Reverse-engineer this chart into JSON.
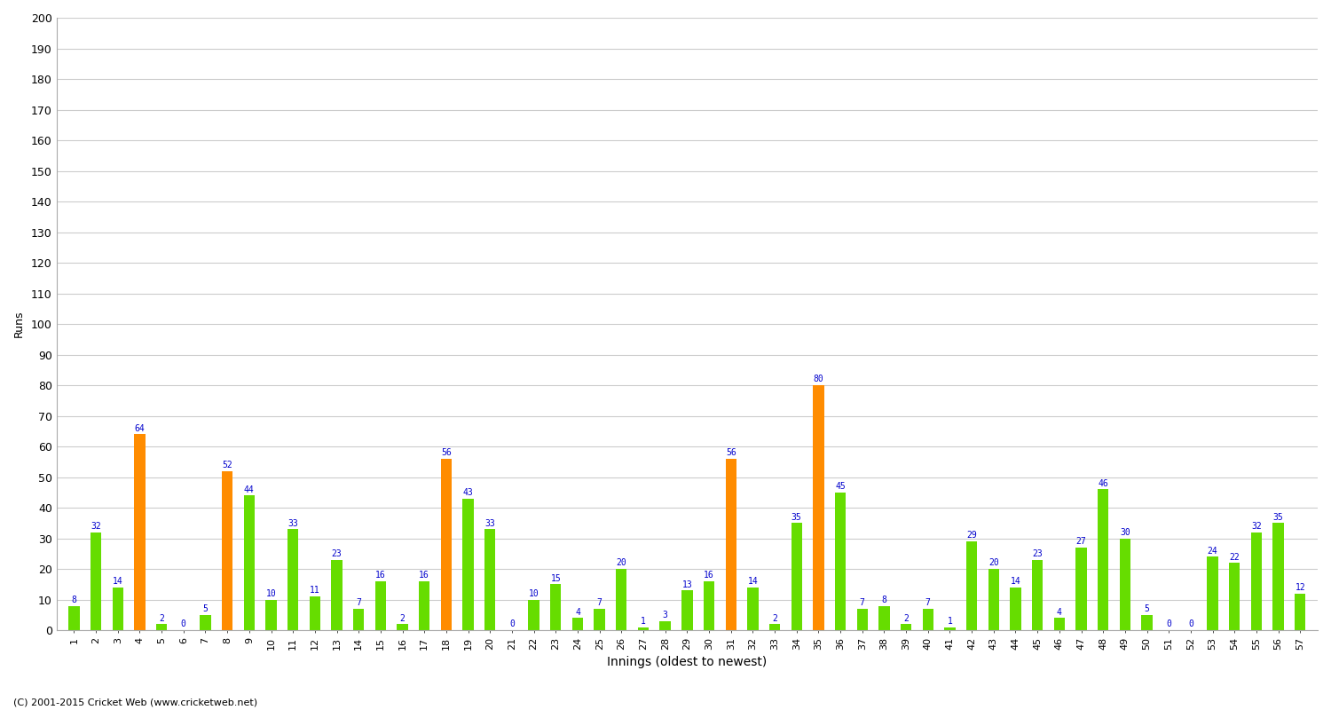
{
  "values": [
    8,
    32,
    14,
    64,
    2,
    0,
    5,
    52,
    44,
    10,
    33,
    11,
    23,
    7,
    16,
    2,
    16,
    56,
    43,
    33,
    0,
    10,
    15,
    4,
    7,
    20,
    1,
    3,
    13,
    16,
    56,
    14,
    2,
    35,
    80,
    45,
    7,
    8,
    2,
    7,
    1,
    29,
    20,
    14,
    23,
    4,
    27,
    46,
    30,
    5,
    0,
    0,
    24,
    22,
    32,
    35,
    12
  ],
  "xlabel": "Innings (oldest to newest)",
  "ylabel": "Runs",
  "ylim": [
    0,
    200
  ],
  "bar_color": "#66dd00",
  "highlight_color": "#ff8c00",
  "label_color": "#0000cc",
  "background_color": "#ffffff",
  "grid_color": "#cccccc",
  "footer": "(C) 2001-2015 Cricket Web (www.cricketweb.net)"
}
